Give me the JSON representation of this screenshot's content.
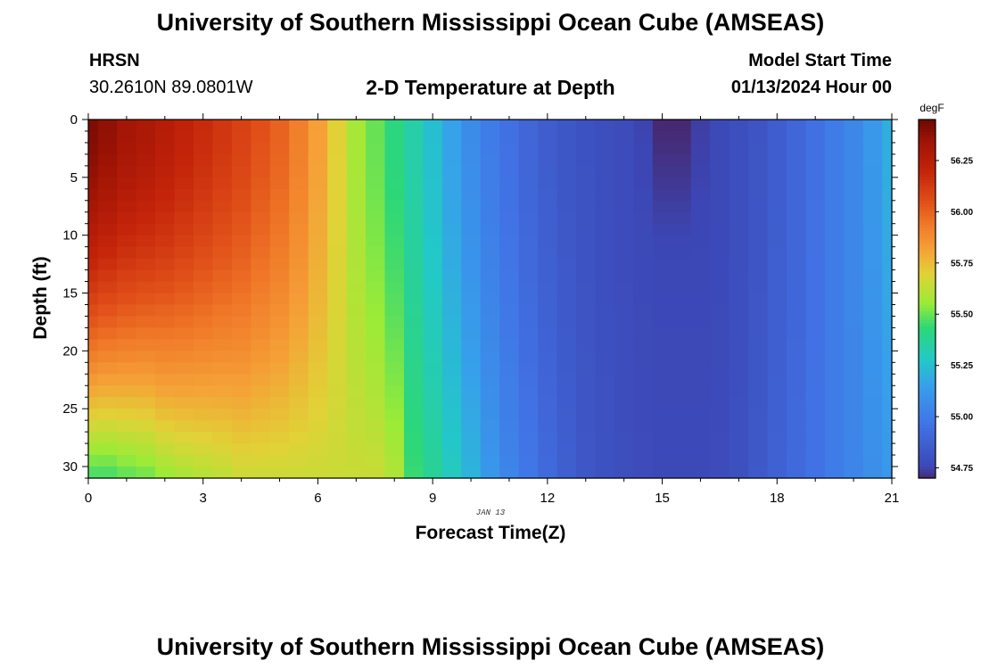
{
  "header": {
    "title": "University of Southern Mississippi Ocean Cube (AMSEAS)",
    "station": "HRSN",
    "coordinates": "30.2610N  89.0801W",
    "plot_title": "2-D Temperature at Depth",
    "model_start_label": "Model Start Time",
    "model_start_value": "01/13/2024 Hour 00"
  },
  "footer": {
    "title": "University of Southern Mississippi Ocean Cube (AMSEAS)"
  },
  "chart_data": {
    "type": "heatmap",
    "title": "2-D Temperature at Depth",
    "xlabel": "Forecast Time(Z)",
    "ylabel": "Depth (ft)",
    "date_label": "JAN 13",
    "x_range": [
      0,
      21
    ],
    "y_range": [
      0,
      31
    ],
    "x_ticks": [
      0,
      3,
      6,
      9,
      12,
      15,
      18,
      21
    ],
    "y_ticks": [
      0,
      5,
      10,
      15,
      20,
      25,
      30
    ],
    "time_step_hours": 0.5,
    "depth_step_ft": 1,
    "colorbar": {
      "unit": "degF",
      "min": 54.7,
      "max": 56.45,
      "ticks": [
        54.75,
        55.0,
        55.25,
        55.5,
        55.75,
        56.0,
        56.25
      ],
      "tick_labels": [
        "54.75",
        "55.00",
        "55.25",
        "55.50",
        "55.75",
        "56.00",
        "56.25"
      ]
    },
    "surface_profile_degF": [
      56.42,
      56.38,
      56.33,
      56.3,
      56.26,
      56.22,
      56.18,
      56.14,
      56.1,
      56.05,
      56.0,
      55.92,
      55.82,
      55.7,
      55.58,
      55.5,
      55.42,
      55.34,
      55.25,
      55.16,
      55.07,
      55.0,
      54.95,
      54.9,
      54.86,
      54.83,
      54.81,
      54.79,
      54.78,
      54.77,
      54.76,
      54.76,
      54.76,
      54.77,
      54.79,
      54.82,
      54.86,
      54.9,
      54.95,
      55.0,
      55.05,
      55.12,
      55.2
    ],
    "bottom_profile_degF": [
      55.45,
      55.45,
      55.48,
      55.5,
      55.55,
      55.58,
      55.6,
      55.62,
      55.65,
      55.65,
      55.65,
      55.65,
      55.65,
      55.65,
      55.65,
      55.65,
      55.6,
      55.45,
      55.38,
      55.3,
      55.22,
      55.12,
      55.04,
      54.98,
      54.92,
      54.87,
      54.83,
      54.81,
      54.79,
      54.78,
      54.77,
      54.77,
      54.77,
      54.78,
      54.8,
      54.84,
      54.88,
      54.92,
      54.96,
      55.0,
      55.04,
      55.08,
      55.12
    ],
    "cold_anomaly": {
      "time_hours": [
        14.5,
        16.0
      ],
      "depth_ft": [
        0,
        12
      ],
      "min_degF": 54.68
    }
  }
}
